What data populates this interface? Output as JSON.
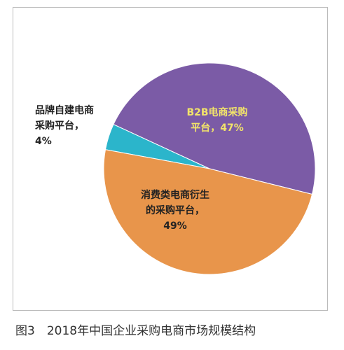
{
  "chart_data": {
    "type": "pie",
    "caption": "图3　2018年中国企业采购电商市场规模结构",
    "categories": [
      "B2B电商采购平台，",
      "品牌自建电商采购平台，",
      "消费类电商衍生的采购平台，"
    ],
    "values": [
      47,
      4,
      49
    ],
    "value_labels": [
      "47%",
      "4%",
      "49%"
    ],
    "colors": [
      "#7b5ba6",
      "#2bb5cb",
      "#e8954b"
    ],
    "label_colors": [
      "#f2e46a",
      "#222222",
      "#222222"
    ]
  }
}
